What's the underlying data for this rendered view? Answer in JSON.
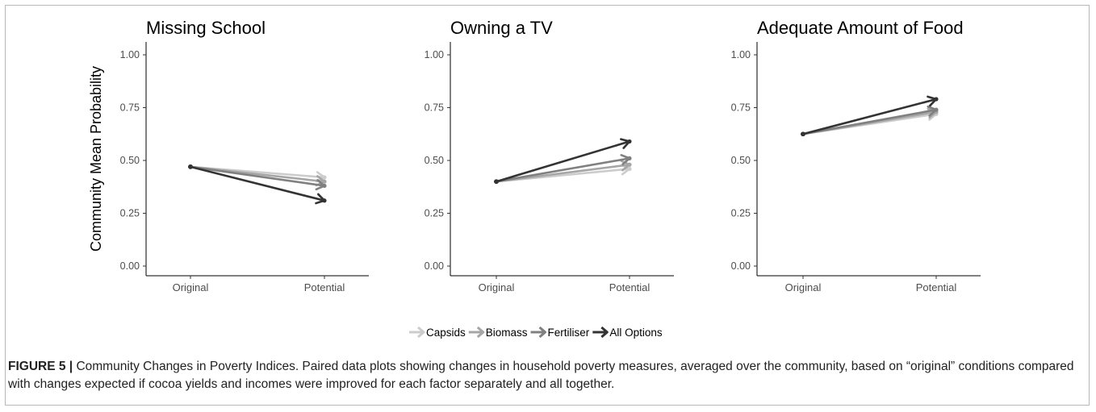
{
  "chart_data": [
    {
      "type": "line",
      "title": "Missing School",
      "ylabel": "Community Mean Probability",
      "categories": [
        "Original",
        "Potential"
      ],
      "ylim": [
        0,
        1
      ],
      "yticks": [
        "0.00",
        "0.25",
        "0.50",
        "0.75",
        "1.00"
      ],
      "series": [
        {
          "name": "Capsids",
          "values": [
            0.47,
            0.42
          ]
        },
        {
          "name": "Biomass",
          "values": [
            0.47,
            0.4
          ]
        },
        {
          "name": "Fertiliser",
          "values": [
            0.47,
            0.38
          ]
        },
        {
          "name": "All Options",
          "values": [
            0.47,
            0.31
          ]
        }
      ]
    },
    {
      "type": "line",
      "title": "Owning a TV",
      "ylabel": "",
      "categories": [
        "Original",
        "Potential"
      ],
      "ylim": [
        0,
        1
      ],
      "yticks": [
        "0.00",
        "0.25",
        "0.50",
        "0.75",
        "1.00"
      ],
      "series": [
        {
          "name": "Capsids",
          "values": [
            0.4,
            0.46
          ]
        },
        {
          "name": "Biomass",
          "values": [
            0.4,
            0.48
          ]
        },
        {
          "name": "Fertiliser",
          "values": [
            0.4,
            0.51
          ]
        },
        {
          "name": "All Options",
          "values": [
            0.4,
            0.59
          ]
        }
      ]
    },
    {
      "type": "line",
      "title": "Adequate Amount of Food",
      "ylabel": "",
      "categories": [
        "Original",
        "Potential"
      ],
      "ylim": [
        0,
        1
      ],
      "yticks": [
        "0.00",
        "0.25",
        "0.50",
        "0.75",
        "1.00"
      ],
      "series": [
        {
          "name": "Capsids",
          "values": [
            0.625,
            0.72
          ]
        },
        {
          "name": "Biomass",
          "values": [
            0.625,
            0.73
          ]
        },
        {
          "name": "Fertiliser",
          "values": [
            0.625,
            0.74
          ]
        },
        {
          "name": "All Options",
          "values": [
            0.625,
            0.79
          ]
        }
      ]
    }
  ],
  "legend": {
    "placement": "bottom",
    "items": [
      {
        "name": "Capsids",
        "color": "#cccccc"
      },
      {
        "name": "Biomass",
        "color": "#a6a6a6"
      },
      {
        "name": "Fertiliser",
        "color": "#808080"
      },
      {
        "name": "All Options",
        "color": "#333333"
      }
    ]
  },
  "caption": {
    "label": "FIGURE 5 |",
    "text": " Community Changes in Poverty Indices. Paired data plots showing changes in household poverty measures, averaged over the community, based on “original” conditions compared with changes expected if cocoa yields and incomes were improved for each factor separately and all together."
  }
}
